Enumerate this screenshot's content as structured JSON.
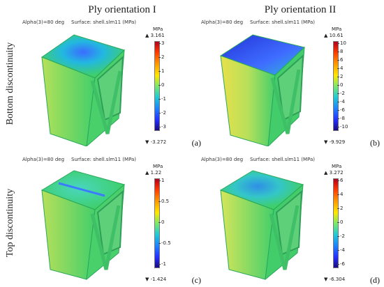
{
  "columns": [
    "Ply orientation I",
    "Ply orientation II"
  ],
  "rows": [
    "Bottom discontinuity",
    "Top discontinuity"
  ],
  "panels": [
    {
      "label": "(a)",
      "alpha_text": "Alpha(3)=80 deg",
      "surface_text": "Surface: shell.slm11 (MPa)",
      "unit": "MPa",
      "max": "▲ 3.161",
      "min": "▼ -3.272",
      "ticks": [
        "3",
        "2",
        "1",
        "0",
        "-1",
        "-2",
        "-3"
      ]
    },
    {
      "label": "(b)",
      "alpha_text": "Alpha(3)=80 deg",
      "surface_text": "Surface: shell.slm11 (MPa)",
      "unit": "MPa",
      "max": "▲ 10.61",
      "min": "▼ -9.929",
      "ticks": [
        "10",
        "8",
        "6",
        "4",
        "2",
        "0",
        "-2",
        "-4",
        "-6",
        "-8",
        "-10"
      ]
    },
    {
      "label": "(c)",
      "alpha_text": "Alpha(3)=80 deg",
      "surface_text": "Surface: shell.slm11 (MPa)",
      "unit": "MPa",
      "max": "▲ 1.22",
      "min": "▼ -1.424",
      "ticks": [
        "1",
        "0.5",
        "0",
        "-0.5",
        "-1"
      ]
    },
    {
      "label": "(d)",
      "alpha_text": "Alpha(3)=80 deg",
      "surface_text": "Surface: shell.slm11 (MPa)",
      "unit": "MPa",
      "max": "▲ 3.272",
      "min": "▼ -6.304",
      "ticks": [
        "6",
        "4",
        "2",
        "0",
        "-2",
        "-4",
        "-6"
      ]
    }
  ],
  "colors": {
    "body": "#3fcf6a",
    "edge": "#2aa85a",
    "warm": "#d8e85a",
    "cool": "#3b8cff",
    "deep": "#2a3cdf"
  }
}
